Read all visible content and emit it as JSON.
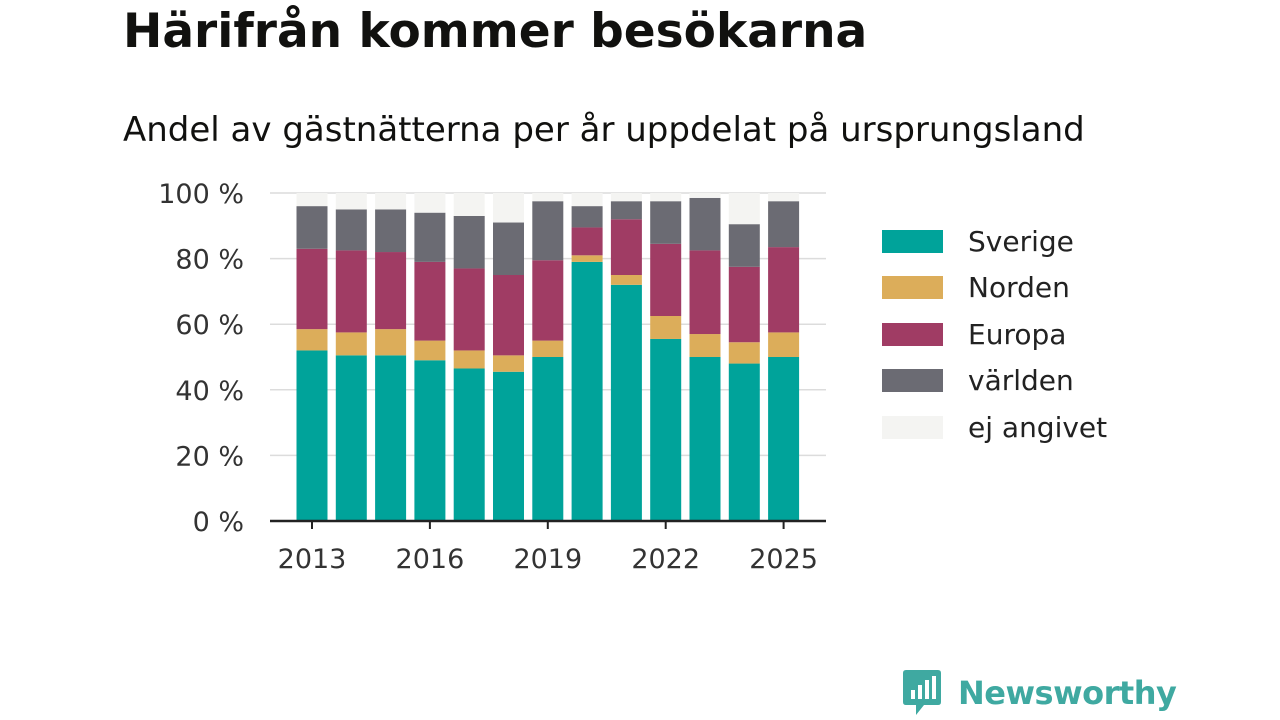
{
  "header": {
    "title": "Härifrån kommer besökarna",
    "subtitle": "Andel av gästnätterna per år uppdelat på ursprungsland"
  },
  "brand": {
    "name": "Newsworthy",
    "icon": "newsworthy-logo-icon",
    "color": "#3fa9a1"
  },
  "chart_data": {
    "type": "bar",
    "stacked": true,
    "x": [
      2013,
      2014,
      2015,
      2016,
      2017,
      2018,
      2019,
      2020,
      2021,
      2022,
      2023,
      2024,
      2025
    ],
    "xticks": [
      "2013",
      "2016",
      "2019",
      "2022",
      "2025"
    ],
    "yticks": [
      "0 %",
      "20 %",
      "40 %",
      "60 %",
      "80 %",
      "100 %"
    ],
    "ylim": [
      0,
      100
    ],
    "grid": true,
    "legend_position": "right",
    "series": [
      {
        "name": "Sverige",
        "color": "#00a39a",
        "values": [
          52,
          50.5,
          50.5,
          49,
          46.5,
          45.5,
          50,
          79,
          72,
          55.5,
          50,
          48,
          50
        ]
      },
      {
        "name": "Norden",
        "color": "#dcad5a",
        "values": [
          6.5,
          7,
          8,
          6,
          5.5,
          5,
          5,
          2,
          3,
          7,
          7,
          6.5,
          7.5
        ]
      },
      {
        "name": "Europa",
        "color": "#a03c64",
        "values": [
          24.5,
          25,
          23.5,
          24,
          25,
          24.5,
          24.5,
          8.5,
          17,
          22,
          25.5,
          23,
          26
        ]
      },
      {
        "name": "världen",
        "color": "#6b6b73",
        "values": [
          13,
          12.5,
          13,
          15,
          16,
          16,
          18,
          6.5,
          5.5,
          13,
          16,
          13,
          14
        ]
      },
      {
        "name": "ej angivet",
        "color": "#f4f4f2",
        "values": [
          4,
          5,
          5,
          6,
          7,
          9,
          2.5,
          4,
          2.5,
          2.5,
          1.5,
          9.5,
          2.5
        ]
      }
    ]
  }
}
